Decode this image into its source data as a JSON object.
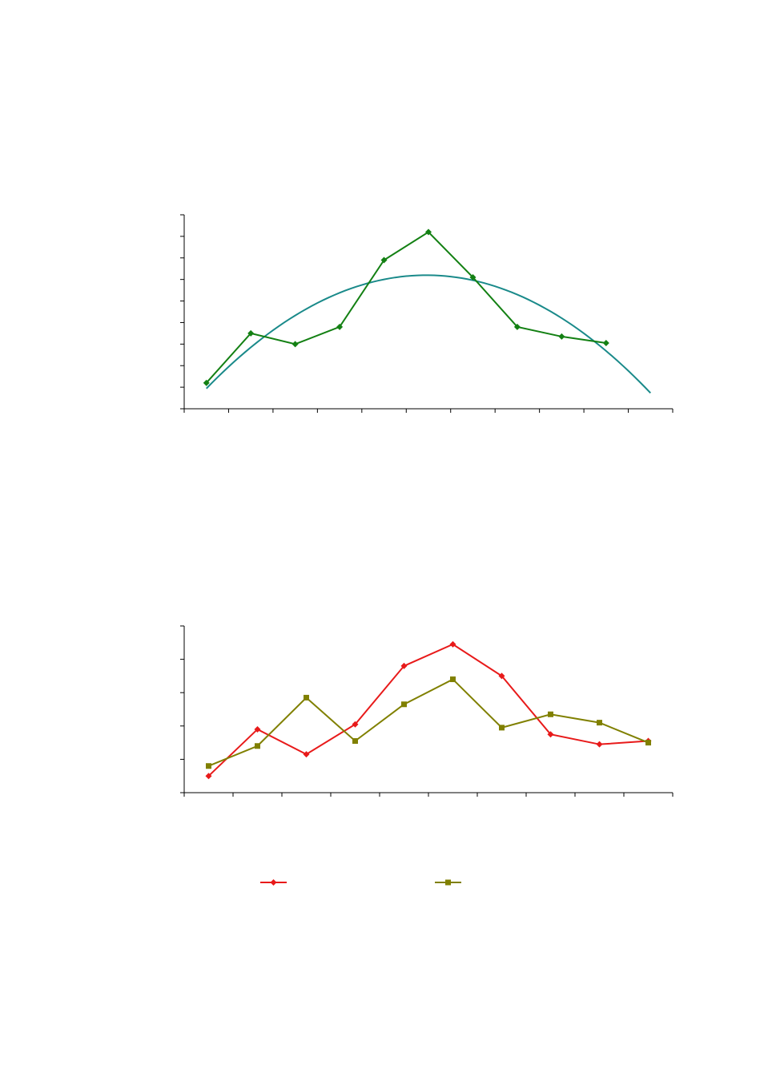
{
  "chart_data": [
    {
      "type": "line",
      "title": "",
      "xlabel": "",
      "ylabel": "",
      "grid": false,
      "x": [
        1,
        2,
        3,
        4,
        5,
        6,
        7,
        8,
        9,
        10
      ],
      "xlim": [
        0.5,
        11.5
      ],
      "ylim": [
        0,
        9
      ],
      "x_ticks": 12,
      "y_ticks": 10,
      "series": [
        {
          "values": [
            1.2,
            3.5,
            3.0,
            3.8,
            6.9,
            8.2,
            6.1,
            3.8,
            3.35,
            3.05
          ],
          "color": "#138013",
          "marker": "diamond"
        }
      ],
      "trend": {
        "type": "quadratic",
        "color": "#1a8a8a",
        "x_range": [
          1,
          11
        ],
        "points": [
          [
            1,
            1.0
          ],
          [
            2,
            2.8
          ],
          [
            6,
            6.1
          ],
          [
            10,
            3.0
          ],
          [
            11,
            0.5
          ]
        ]
      }
    },
    {
      "type": "line",
      "title": "",
      "xlabel": "",
      "ylabel": "",
      "grid": false,
      "x": [
        1,
        2,
        3,
        4,
        5,
        6,
        7,
        8,
        9,
        10
      ],
      "xlim": [
        0.5,
        10.5
      ],
      "ylim": [
        0,
        5
      ],
      "x_ticks": 11,
      "y_ticks": 6,
      "legend": "bottom",
      "series": [
        {
          "values": [
            0.5,
            1.9,
            1.15,
            2.05,
            3.8,
            4.45,
            3.5,
            1.75,
            1.45,
            1.55
          ],
          "color": "#e81a1a",
          "marker": "diamond"
        },
        {
          "values": [
            0.8,
            1.4,
            2.85,
            1.55,
            2.65,
            3.4,
            1.95,
            2.35,
            2.1,
            1.5
          ],
          "color": "#808000",
          "marker": "square"
        }
      ]
    }
  ]
}
